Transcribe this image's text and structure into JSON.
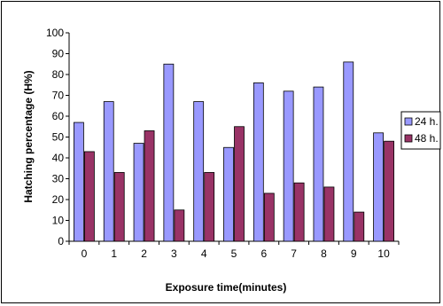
{
  "chart_data": {
    "type": "bar",
    "title": "",
    "xlabel": "Exposure time(minutes)",
    "ylabel": "Hatching percentage (H%)",
    "ylim": [
      0,
      100
    ],
    "yticks": [
      0,
      10,
      20,
      30,
      40,
      50,
      60,
      70,
      80,
      90,
      100
    ],
    "categories": [
      "0",
      "1",
      "2",
      "3",
      "4",
      "5",
      "6",
      "7",
      "8",
      "9",
      "10"
    ],
    "series": [
      {
        "name": "24 h.",
        "color": "#9999ff",
        "values": [
          57,
          67,
          47,
          85,
          67,
          45,
          76,
          72,
          74,
          86,
          52
        ]
      },
      {
        "name": "48 h.",
        "color": "#993366",
        "values": [
          43,
          33,
          53,
          15,
          33,
          55,
          23,
          28,
          26,
          14,
          48
        ]
      }
    ],
    "grid": false,
    "legend_position": "right"
  }
}
